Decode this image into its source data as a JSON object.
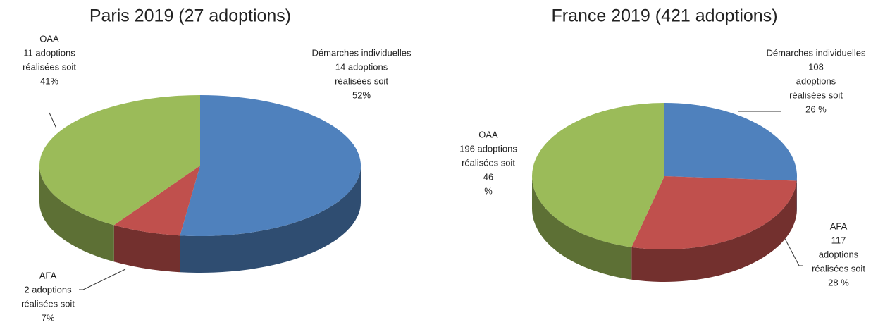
{
  "chart_data": [
    {
      "type": "pie3d",
      "title": "Paris 2019 (27 adoptions)",
      "categories": [
        "Démarches individuelles",
        "AFA",
        "OAA"
      ],
      "values": [
        52,
        7,
        41
      ],
      "value_labels": [
        [
          "14 adoptions",
          "réalisées soit",
          "52%"
        ],
        [
          "2 adoptions",
          "réalisées soit",
          "7%"
        ],
        [
          "11 adoptions",
          "réalisées soit",
          "41%"
        ]
      ],
      "colors": [
        "#4f81bd",
        "#c0504d",
        "#9bbb59"
      ]
    },
    {
      "type": "pie3d",
      "title": "France 2019 (421 adoptions)",
      "categories": [
        "Démarches individuelles",
        "AFA",
        "OAA"
      ],
      "values": [
        26,
        28,
        46
      ],
      "value_labels": [
        [
          "108",
          "adoptions",
          "réalisées soit",
          "26 %"
        ],
        [
          "117",
          "adoptions",
          "réalisées soit",
          "28 %"
        ],
        [
          "196 adoptions",
          "réalisées soit",
          "46",
          "%"
        ]
      ],
      "colors": [
        "#4f81bd",
        "#c0504d",
        "#9bbb59"
      ]
    }
  ]
}
